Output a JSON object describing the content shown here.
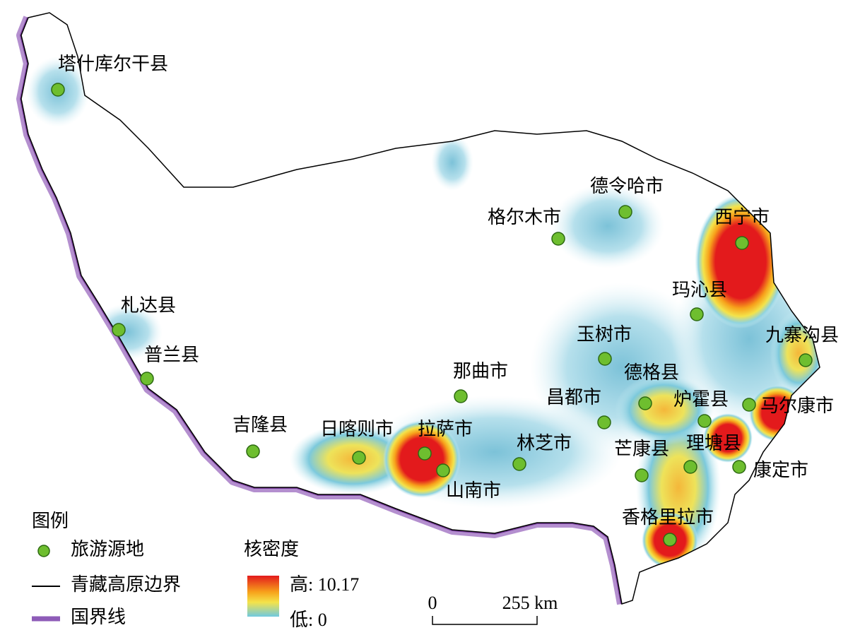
{
  "places": [
    {
      "name": "塔什库尔干县"
    },
    {
      "name": "德令哈市"
    },
    {
      "name": "格尔木市"
    },
    {
      "name": "西宁市"
    },
    {
      "name": "玛沁县"
    },
    {
      "name": "札达县"
    },
    {
      "name": "九寨沟县"
    },
    {
      "name": "玉树市"
    },
    {
      "name": "普兰县"
    },
    {
      "name": "那曲市"
    },
    {
      "name": "德格县"
    },
    {
      "name": "炉霍县"
    },
    {
      "name": "马尔康市"
    },
    {
      "name": "昌都市"
    },
    {
      "name": "吉隆县"
    },
    {
      "name": "日喀则市"
    },
    {
      "name": "拉萨市"
    },
    {
      "name": "山南市"
    },
    {
      "name": "林芝市"
    },
    {
      "name": "芒康县"
    },
    {
      "name": "理塘县"
    },
    {
      "name": "康定市"
    },
    {
      "name": "香格里拉市"
    }
  ],
  "legend": {
    "title": "图例",
    "items": [
      "旅游源地",
      "青藏高原边界",
      "国界线"
    ]
  },
  "density": {
    "title": "核密度",
    "high_label": "高: 10.17",
    "low_label": "低: 0"
  },
  "scale_bar": {
    "labels": [
      "0",
      "255 km"
    ]
  }
}
